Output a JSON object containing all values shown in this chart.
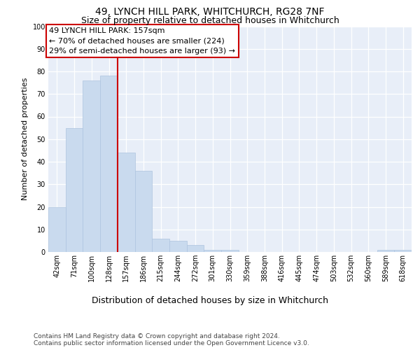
{
  "title1": "49, LYNCH HILL PARK, WHITCHURCH, RG28 7NF",
  "title2": "Size of property relative to detached houses in Whitchurch",
  "xlabel": "Distribution of detached houses by size in Whitchurch",
  "ylabel": "Number of detached properties",
  "bin_labels": [
    "42sqm",
    "71sqm",
    "100sqm",
    "128sqm",
    "157sqm",
    "186sqm",
    "215sqm",
    "244sqm",
    "272sqm",
    "301sqm",
    "330sqm",
    "359sqm",
    "388sqm",
    "416sqm",
    "445sqm",
    "474sqm",
    "503sqm",
    "532sqm",
    "560sqm",
    "589sqm",
    "618sqm"
  ],
  "bar_values": [
    20,
    55,
    76,
    78,
    44,
    36,
    6,
    5,
    3,
    1,
    1,
    0,
    0,
    0,
    0,
    0,
    0,
    0,
    0,
    1,
    1
  ],
  "bar_color": "#c9daee",
  "bar_edge_color": "#adc4df",
  "highlight_bar_index": 4,
  "highlight_line_color": "#cc0000",
  "annotation_text": "49 LYNCH HILL PARK: 157sqm\n← 70% of detached houses are smaller (224)\n29% of semi-detached houses are larger (93) →",
  "annotation_box_edgecolor": "#cc0000",
  "ylim": [
    0,
    100
  ],
  "yticks": [
    0,
    10,
    20,
    30,
    40,
    50,
    60,
    70,
    80,
    90,
    100
  ],
  "background_color": "#e8eef8",
  "grid_color": "#ffffff",
  "footer_text": "Contains HM Land Registry data © Crown copyright and database right 2024.\nContains public sector information licensed under the Open Government Licence v3.0.",
  "title1_fontsize": 10,
  "title2_fontsize": 9,
  "xlabel_fontsize": 9,
  "ylabel_fontsize": 8,
  "tick_fontsize": 7,
  "annotation_fontsize": 8,
  "footer_fontsize": 6.5
}
